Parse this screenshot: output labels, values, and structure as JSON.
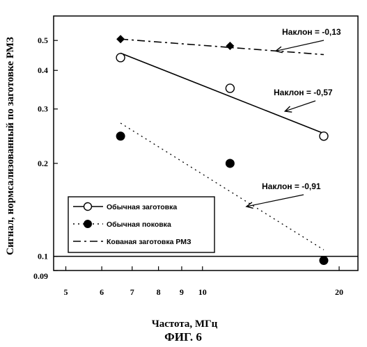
{
  "chart_data": {
    "type": "scatter",
    "title": "",
    "xlabel": "Частота, МГц",
    "ylabel": "Сигнал, нормсализованный по заготовке РМЗ",
    "figure_label": "ФИГ. 6",
    "x_scale": "log",
    "y_scale": "log",
    "xlim": [
      4.7,
      22
    ],
    "ylim": [
      0.09,
      0.6
    ],
    "x_ticks": [
      {
        "value": 5,
        "label": "5"
      },
      {
        "value": 6,
        "label": "6"
      },
      {
        "value": 7,
        "label": "7"
      },
      {
        "value": 8,
        "label": "8"
      },
      {
        "value": 9,
        "label": "9"
      },
      {
        "value": 10,
        "label": "10"
      },
      {
        "value": 20,
        "label": "20"
      }
    ],
    "y_ticks": [
      {
        "value": 0.09,
        "label": "0.09"
      },
      {
        "value": 0.1,
        "label": "0.1"
      },
      {
        "value": 0.2,
        "label": "0.2"
      },
      {
        "value": 0.3,
        "label": "0.3"
      },
      {
        "value": 0.4,
        "label": "0.4"
      },
      {
        "value": 0.5,
        "label": "0.5"
      }
    ],
    "grid": false,
    "legend_position": "bottom-left",
    "series": [
      {
        "name": "Обычная заготовка",
        "marker": "open-circle",
        "line_style": "solid",
        "points": [
          [
            6.6,
            0.44
          ],
          [
            11.5,
            0.35
          ],
          [
            18.5,
            0.245
          ]
        ],
        "fit": [
          [
            6.6,
            0.455
          ],
          [
            18.5,
            0.25
          ]
        ]
      },
      {
        "name": "Обычная поковка",
        "marker": "filled-circle",
        "line_style": "dotted",
        "points": [
          [
            6.6,
            0.245
          ],
          [
            11.5,
            0.2
          ],
          [
            18.5,
            0.097
          ]
        ],
        "fit": [
          [
            6.6,
            0.27
          ],
          [
            18.5,
            0.105
          ]
        ]
      },
      {
        "name": "Кованая заготовка РМЗ",
        "marker": "filled-diamond",
        "line_style": "dash-dot",
        "points": [
          [
            6.6,
            0.505
          ],
          [
            11.5,
            0.48
          ]
        ],
        "fit": [
          [
            6.6,
            0.505
          ],
          [
            18.5,
            0.45
          ]
        ]
      }
    ],
    "annotations": [
      {
        "text": "Наклон = -0,13",
        "target": [
          14.5,
          0.462
        ]
      },
      {
        "text": "Наклон = -0,57",
        "target": [
          15.2,
          0.295
        ]
      },
      {
        "text": "Наклон = -0,91",
        "target": [
          12.5,
          0.145
        ]
      }
    ],
    "reference_line_y": 0.1
  }
}
